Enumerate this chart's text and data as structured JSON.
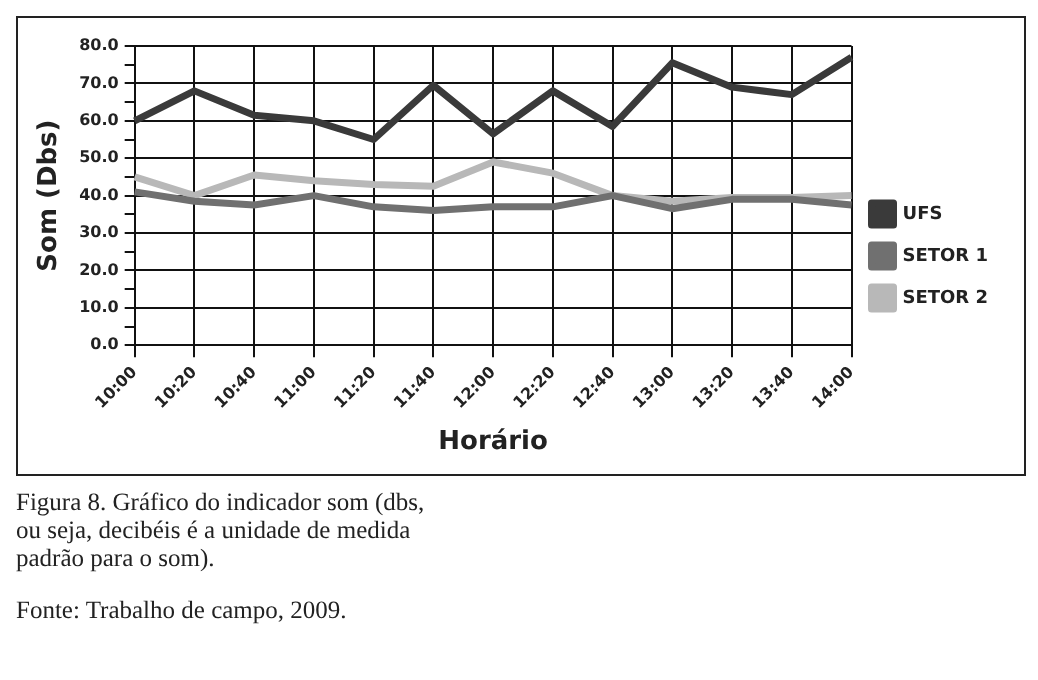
{
  "chart_data": {
    "type": "line",
    "xlabel": "Horário",
    "ylabel": "Som (Dbs)",
    "categories": [
      "10:00",
      "10:20",
      "10:40",
      "11:00",
      "11:20",
      "11:40",
      "12:00",
      "12:20",
      "12:40",
      "13:00",
      "13:20",
      "13:40",
      "14:00"
    ],
    "series": [
      {
        "name": "UFS",
        "color": "#3a3a3a",
        "values": [
          60,
          68,
          61.5,
          60,
          55,
          69.5,
          56.5,
          68,
          58.5,
          75.5,
          69,
          67,
          77
        ]
      },
      {
        "name": "SETOR 1",
        "color": "#707070",
        "values": [
          41,
          38.5,
          37.5,
          40,
          37,
          36,
          37,
          37,
          40,
          36.5,
          39,
          39,
          37.5
        ]
      },
      {
        "name": "SETOR 2",
        "color": "#b8b8b8",
        "values": [
          45,
          40,
          45.5,
          44,
          43,
          42.5,
          49,
          46,
          40,
          38.5,
          39.5,
          39.5,
          40
        ]
      }
    ],
    "ylim": [
      0,
      80
    ],
    "yticks": [
      {
        "value": 0,
        "label": "0.0"
      },
      {
        "value": 5,
        "label": null
      },
      {
        "value": 10,
        "label": "10.0"
      },
      {
        "value": 15,
        "label": null
      },
      {
        "value": 20,
        "label": "20.0"
      },
      {
        "value": 25,
        "label": null
      },
      {
        "value": 30,
        "label": "30.0"
      },
      {
        "value": 35,
        "label": null
      },
      {
        "value": 40,
        "label": "40.0"
      },
      {
        "value": 45,
        "label": null
      },
      {
        "value": 50,
        "label": "50.0"
      },
      {
        "value": 55,
        "label": null
      },
      {
        "value": 60,
        "label": "60.0"
      },
      {
        "value": 65,
        "label": null
      },
      {
        "value": 70,
        "label": "70.0"
      },
      {
        "value": 75,
        "label": null
      },
      {
        "value": 80,
        "label": "80.0"
      }
    ],
    "grid": true,
    "legend": "right",
    "marker": "none",
    "line_style": "solid",
    "annotations": [
      "Figura 8. Gráfico do indicador som (dbs, ou seja, decibéis é a unidade de medida padrão para o som).",
      "Fonte: Trabalho de campo, 2009."
    ]
  }
}
